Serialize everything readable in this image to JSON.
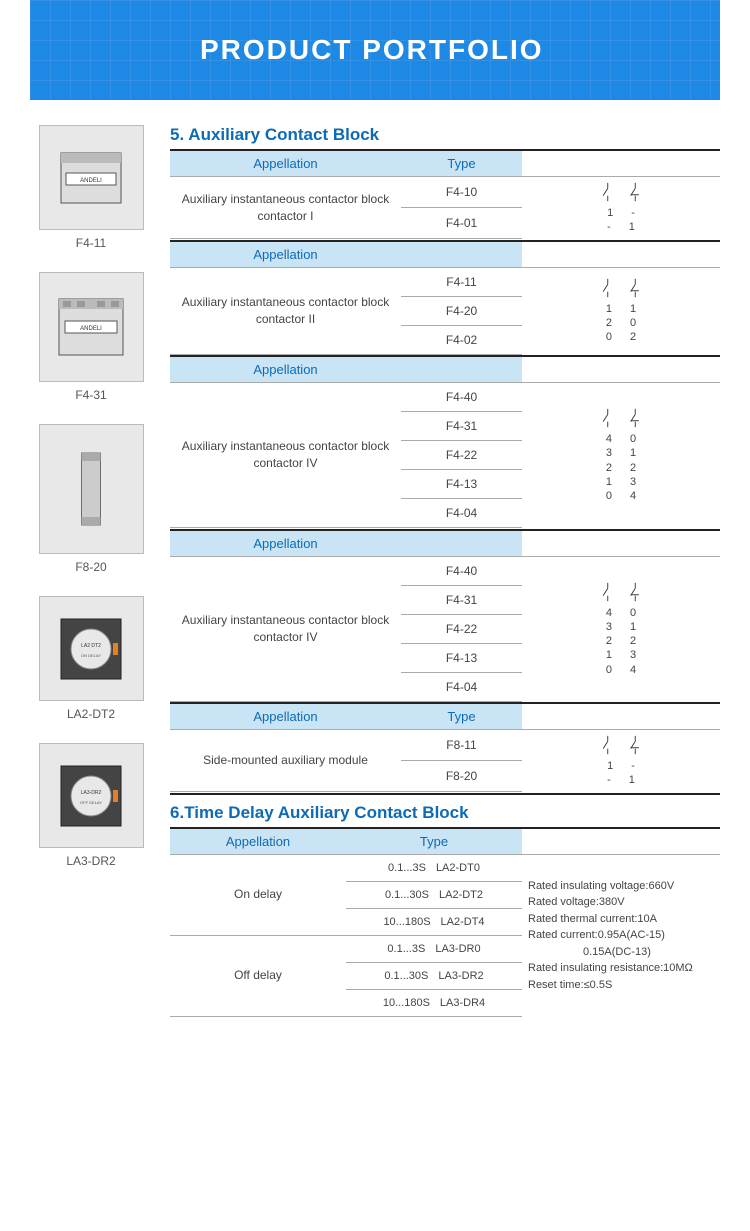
{
  "banner": {
    "title": "PRODUCT PORTFOLIO"
  },
  "products": [
    {
      "label": "F4-11"
    },
    {
      "label": "F4-31"
    },
    {
      "label": "F8-20"
    },
    {
      "label": "LA2-DT2"
    },
    {
      "label": "LA3-DR2"
    }
  ],
  "section5": {
    "num": "5",
    "title": "Auxiliary Contact Block",
    "col_appellation": "Appellation",
    "col_type": "Type",
    "blocks": [
      {
        "appellation": "Auxiliary instantaneous contactor block,contactor I",
        "types": [
          "F4-10",
          "F4-01"
        ],
        "matrix": [
          [
            "1",
            "-"
          ],
          [
            "-",
            "1"
          ]
        ]
      },
      {
        "appellation": "Auxiliary instantaneous contactor block,contactor II",
        "types": [
          "F4-11",
          "F4-20",
          "F4-02"
        ],
        "matrix": [
          [
            "1",
            "1"
          ],
          [
            "2",
            "0"
          ],
          [
            "0",
            "2"
          ]
        ]
      },
      {
        "appellation": "Auxiliary instantaneous contactor block,contactor IV",
        "types": [
          "F4-40",
          "F4-31",
          "F4-22",
          "F4-13",
          "F4-04"
        ],
        "matrix": [
          [
            "4",
            "0"
          ],
          [
            "3",
            "1"
          ],
          [
            "2",
            "2"
          ],
          [
            "1",
            "3"
          ],
          [
            "0",
            "4"
          ]
        ]
      },
      {
        "appellation": "Auxiliary instantaneous contactor block,contactor IV",
        "types": [
          "F4-40",
          "F4-31",
          "F4-22",
          "F4-13",
          "F4-04"
        ],
        "matrix": [
          [
            "4",
            "0"
          ],
          [
            "3",
            "1"
          ],
          [
            "2",
            "2"
          ],
          [
            "1",
            "3"
          ],
          [
            "0",
            "4"
          ]
        ]
      },
      {
        "appellation": "Side-mounted auxiliary module",
        "types": [
          "F8-11",
          "F8-20"
        ],
        "matrix": [
          [
            "1",
            "-"
          ],
          [
            "-",
            "1"
          ]
        ]
      }
    ]
  },
  "section6": {
    "num": "6",
    "title": "Time Delay Auxiliary Contact Block",
    "col_appellation": "Appellation",
    "col_type": "Type",
    "rows": [
      {
        "app": "On delay",
        "ranges": [
          "0.1...3S",
          "0.1...30S",
          "10...180S"
        ],
        "types": [
          "LA2-DT0",
          "LA2-DT2",
          "LA2-DT4"
        ]
      },
      {
        "app": "Off delay",
        "ranges": [
          "0.1...3S",
          "0.1...30S",
          "10...180S"
        ],
        "types": [
          "LA3-DR0",
          "LA3-DR2",
          "LA3-DR4"
        ]
      }
    ],
    "ratings": [
      "Rated insulating voltage:660V",
      "Rated voltage:380V",
      "Rated thermal current:10A",
      "Rated current:0.95A(AC-15)",
      "                  0.15A(DC-13)",
      "Rated insulating resistance:10MΩ",
      "Reset time:≤0.5S"
    ]
  },
  "colors": {
    "brand_blue": "#1e88e5",
    "header_blue": "#c8e4f5",
    "title_blue": "#0d6bb5"
  }
}
